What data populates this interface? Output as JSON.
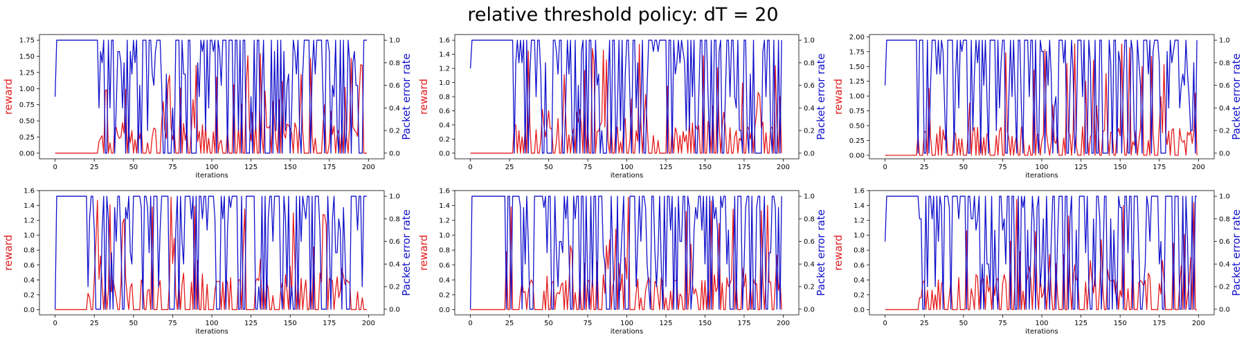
{
  "title": "relative threshold policy: dT = 20",
  "colors": {
    "reward": "#e41a1c",
    "per": "#1010cc",
    "axes": "#000000"
  },
  "chart_data": [
    {
      "type": "line",
      "xlabel": "iterations",
      "ylabel": "reward",
      "y2label": "Packet error rate",
      "xticks": [
        0,
        25,
        50,
        75,
        100,
        125,
        150,
        175,
        200
      ],
      "xlim": [
        -10,
        210
      ],
      "ylim": [
        -0.0875,
        1.8375
      ],
      "yticks": [
        0.0,
        0.25,
        0.5,
        0.75,
        1.0,
        1.25,
        1.5,
        1.75
      ],
      "yticklabels": [
        "0.00",
        "0.25",
        "0.50",
        "0.75",
        "1.00",
        "1.25",
        "1.50",
        "1.75"
      ],
      "y2lim": [
        -0.05,
        1.05
      ],
      "y2ticks": [
        0.0,
        0.2,
        0.4,
        0.6,
        0.8,
        1.0
      ],
      "y2ticklabels": [
        "0.0",
        "0.2",
        "0.4",
        "0.6",
        "0.8",
        "1.0"
      ],
      "reward_peak": 1.6,
      "reward_level": 0.38,
      "reward_onset": 22,
      "per_start": 0.5,
      "per_onset": 24,
      "seed": 11,
      "series": [
        {
          "values": []
        },
        {
          "values": []
        }
      ]
    },
    {
      "type": "line",
      "xlabel": "iterations",
      "ylabel": "reward",
      "y2label": "Packet error rate",
      "xticks": [
        0,
        25,
        50,
        75,
        100,
        125,
        150,
        175,
        200
      ],
      "xlim": [
        -10,
        210
      ],
      "ylim": [
        -0.08,
        1.68
      ],
      "yticks": [
        0.0,
        0.2,
        0.4,
        0.6,
        0.8,
        1.0,
        1.2,
        1.4,
        1.6
      ],
      "yticklabels": [
        "0.0",
        "0.2",
        "0.4",
        "0.6",
        "0.8",
        "1.0",
        "1.2",
        "1.4",
        "1.6"
      ],
      "y2lim": [
        -0.05,
        1.05
      ],
      "y2ticks": [
        0.0,
        0.2,
        0.4,
        0.6,
        0.8,
        1.0
      ],
      "y2ticklabels": [
        "0.0",
        "0.2",
        "0.4",
        "0.6",
        "0.8",
        "1.0"
      ],
      "reward_peak": 1.55,
      "reward_level": 0.38,
      "reward_onset": 24,
      "per_start": 0.75,
      "per_onset": 26,
      "seed": 23,
      "series": [
        {
          "values": []
        },
        {
          "values": []
        }
      ]
    },
    {
      "type": "line",
      "xlabel": "iterations",
      "ylabel": "reward",
      "y2label": "Packet error rate",
      "xticks": [
        0,
        25,
        50,
        75,
        100,
        125,
        150,
        175,
        200
      ],
      "xlim": [
        -10,
        210
      ],
      "ylim": [
        -0.06,
        2.04
      ],
      "yticks": [
        0.0,
        0.25,
        0.5,
        0.75,
        1.0,
        1.25,
        1.5,
        1.75,
        2.0
      ],
      "yticklabels": [
        "0.00",
        "0.25",
        "0.50",
        "0.75",
        "1.00",
        "1.25",
        "1.50",
        "1.75",
        "2.00"
      ],
      "y2lim": [
        -0.05,
        1.05
      ],
      "y2ticks": [
        0.0,
        0.2,
        0.4,
        0.6,
        0.8,
        1.0
      ],
      "y2ticklabels": [
        "0.0",
        "0.2",
        "0.4",
        "0.6",
        "0.8",
        "1.0"
      ],
      "reward_peak": 1.9,
      "reward_level": 0.38,
      "reward_onset": 18,
      "per_start": 0.6,
      "per_onset": 20,
      "seed": 37,
      "series": [
        {
          "values": []
        },
        {
          "values": []
        }
      ]
    },
    {
      "type": "line",
      "xlabel": "iterations",
      "ylabel": "reward",
      "y2label": "Packet error rate",
      "xticks": [
        0,
        25,
        50,
        75,
        100,
        125,
        150,
        175,
        200
      ],
      "xlim": [
        -10,
        210
      ],
      "ylim": [
        -0.07,
        1.6
      ],
      "yticks": [
        0.0,
        0.2,
        0.4,
        0.6,
        0.8,
        1.0,
        1.2,
        1.4,
        1.6
      ],
      "yticklabels": [
        "0.0",
        "0.2",
        "0.4",
        "0.6",
        "0.8",
        "1.0",
        "1.2",
        "1.4",
        "1.6"
      ],
      "y2lim": [
        -0.05,
        1.05
      ],
      "y2ticks": [
        0.0,
        0.2,
        0.4,
        0.6,
        0.8,
        1.0
      ],
      "y2ticklabels": [
        "0.0",
        "0.2",
        "0.4",
        "0.6",
        "0.8",
        "1.0"
      ],
      "reward_peak": 1.53,
      "reward_level": 0.38,
      "reward_onset": 18,
      "per_start": 0.0,
      "per_onset": 20,
      "seed": 41,
      "series": [
        {
          "values": []
        },
        {
          "values": []
        }
      ]
    },
    {
      "type": "line",
      "xlabel": "iterations",
      "ylabel": "reward",
      "y2label": "Packet error rate",
      "xticks": [
        0,
        25,
        50,
        75,
        100,
        125,
        150,
        175,
        200
      ],
      "xlim": [
        -10,
        210
      ],
      "ylim": [
        -0.07,
        1.6
      ],
      "yticks": [
        0.0,
        0.2,
        0.4,
        0.6,
        0.8,
        1.0,
        1.2,
        1.4,
        1.6
      ],
      "yticklabels": [
        "0.0",
        "0.2",
        "0.4",
        "0.6",
        "0.8",
        "1.0",
        "1.2",
        "1.4",
        "1.6"
      ],
      "y2lim": [
        -0.05,
        1.05
      ],
      "y2ticks": [
        0.0,
        0.2,
        0.4,
        0.6,
        0.8,
        1.0
      ],
      "y2ticklabels": [
        "0.0",
        "0.2",
        "0.4",
        "0.6",
        "0.8",
        "1.0"
      ],
      "reward_peak": 1.53,
      "reward_level": 0.38,
      "reward_onset": 18,
      "per_start": 0.0,
      "per_onset": 20,
      "seed": 53,
      "series": [
        {
          "values": []
        },
        {
          "values": []
        }
      ]
    },
    {
      "type": "line",
      "xlabel": "iterations",
      "ylabel": "reward",
      "y2label": "Packet error rate",
      "xticks": [
        0,
        25,
        50,
        75,
        100,
        125,
        150,
        175,
        200
      ],
      "xlim": [
        -10,
        210
      ],
      "ylim": [
        -0.07,
        1.6
      ],
      "yticks": [
        0.0,
        0.2,
        0.4,
        0.6,
        0.8,
        1.0,
        1.2,
        1.4,
        1.6
      ],
      "yticklabels": [
        "0.0",
        "0.2",
        "0.4",
        "0.6",
        "0.8",
        "1.0",
        "1.2",
        "1.4",
        "1.6"
      ],
      "y2lim": [
        -0.05,
        1.05
      ],
      "y2ticks": [
        0.0,
        0.2,
        0.4,
        0.6,
        0.8,
        1.0
      ],
      "y2ticklabels": [
        "0.0",
        "0.2",
        "0.4",
        "0.6",
        "0.8",
        "1.0"
      ],
      "reward_peak": 1.55,
      "reward_level": 0.38,
      "reward_onset": 18,
      "per_start": 0.6,
      "per_onset": 20,
      "seed": 67,
      "series": [
        {
          "values": []
        },
        {
          "values": []
        }
      ]
    }
  ]
}
